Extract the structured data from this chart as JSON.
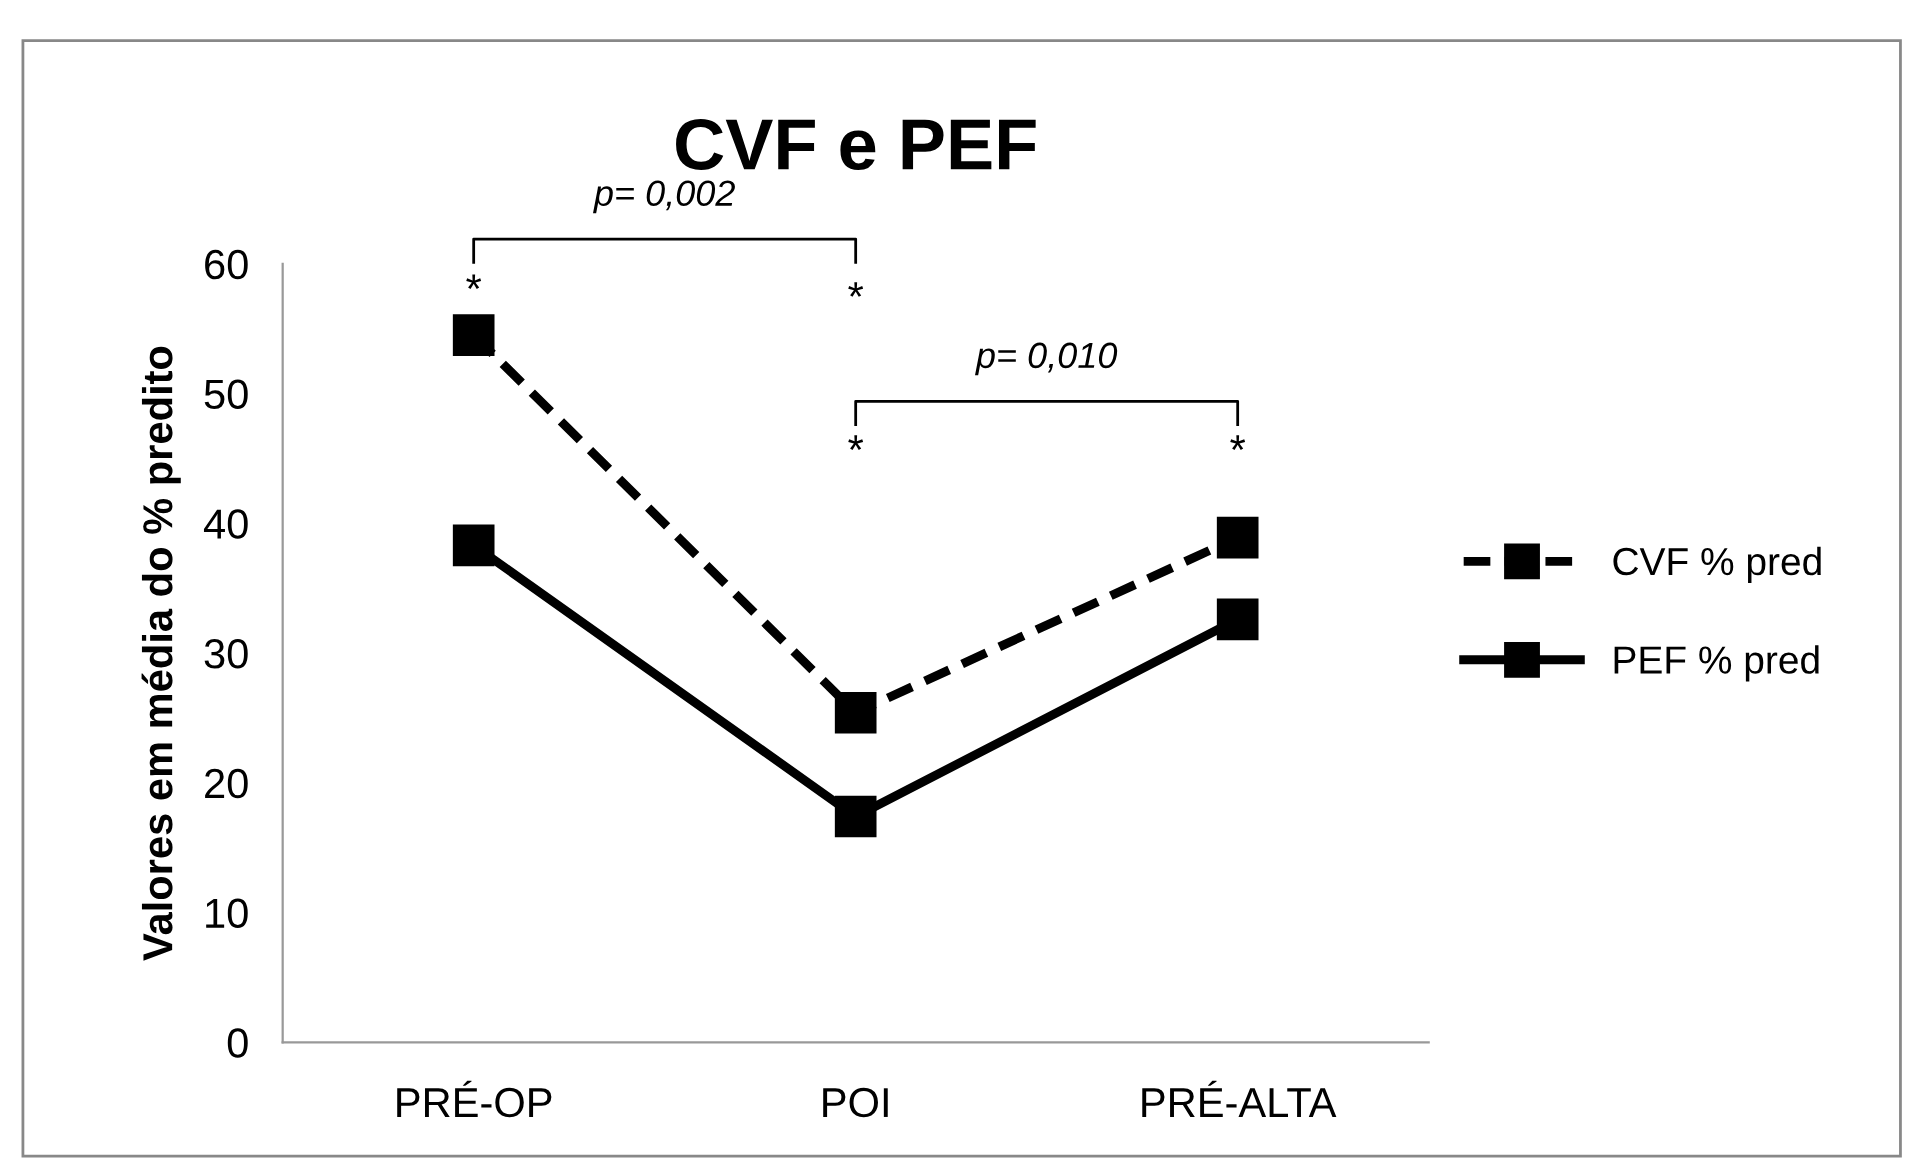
{
  "chart_data": {
    "type": "line",
    "title": "CVF e PEF",
    "ylabel": "Valores em média do % predito",
    "categories": [
      "PRÉ-OP",
      "POI",
      "PRÉ-ALTA"
    ],
    "series": [
      {
        "name": "CVF % pred",
        "color": "#000000",
        "values": [
          54.5,
          25.4,
          38.9
        ],
        "line_style": "dashed"
      },
      {
        "name": "PEF % pred",
        "color": "#000000",
        "values": [
          38.3,
          17.4,
          32.6
        ],
        "line_style": "solid"
      }
    ],
    "ylim": [
      0,
      60
    ],
    "yticks": [
      0,
      10,
      20,
      30,
      40,
      50,
      60
    ],
    "marker": "square",
    "legend": "right",
    "grid": false,
    "annotations": [
      "p= 0,002",
      "p= 0,010",
      "*",
      "*",
      "*",
      "*"
    ]
  }
}
